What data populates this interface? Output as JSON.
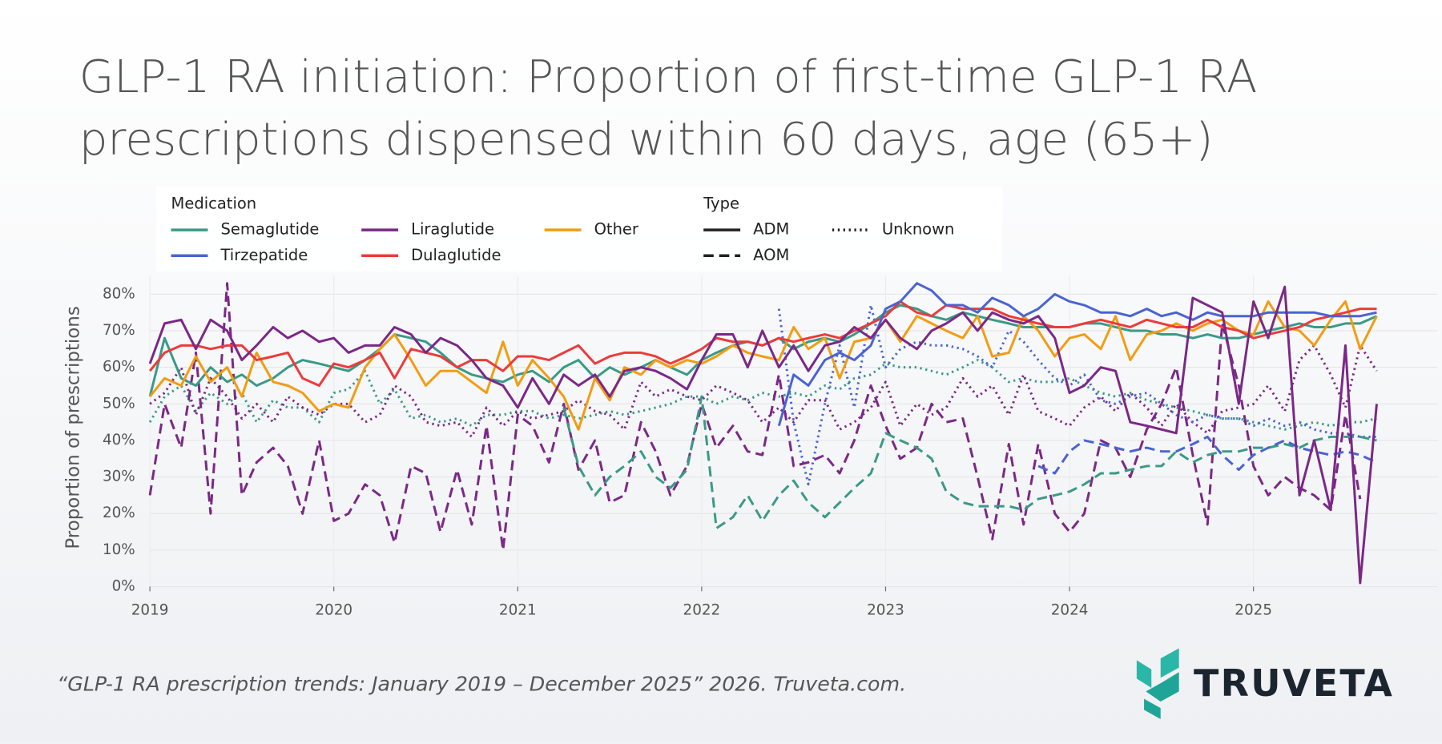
{
  "chart_data": {
    "type": "line",
    "title": [
      "GLP-1 RA initiation: Proportion of first-time GLP-1 RA",
      "prescriptions dispensed within 60 days, age (65+)"
    ],
    "y_label": "Proportion of prescriptions",
    "source": "“GLP-1 RA prescription trends: January 2019 – December 2025” 2026. Truveta.com.",
    "logo": "TRUVETA",
    "legend": {
      "medication_title": "Medication",
      "medications": [
        {
          "name": "Semaglutide",
          "color": "#3a9a86"
        },
        {
          "name": "Tirzepatide",
          "color": "#4a63d3"
        },
        {
          "name": "Liraglutide",
          "color": "#7b2887"
        },
        {
          "name": "Dulaglutide",
          "color": "#ec3b3b"
        },
        {
          "name": "Other",
          "color": "#f39c12"
        }
      ],
      "type_title": "Type",
      "types": [
        {
          "name": "ADM",
          "dash": "none"
        },
        {
          "name": "AOM",
          "dash": "11,6"
        },
        {
          "name": "Unknown",
          "dash": "2,4"
        }
      ]
    },
    "grid": true,
    "xlim": [
      2019,
      2026
    ],
    "xticks": [
      2019,
      2020,
      2021,
      2022,
      2023,
      2024,
      2025
    ],
    "ylim": [
      0,
      85
    ],
    "yticks": [
      {
        "value": 0,
        "label": "0%"
      },
      {
        "value": 10,
        "label": "10%"
      },
      {
        "value": 20,
        "label": "20%"
      },
      {
        "value": 30,
        "label": "30%"
      },
      {
        "value": 40,
        "label": "40%"
      },
      {
        "value": 50,
        "label": "50%"
      },
      {
        "value": 60,
        "label": "60%"
      },
      {
        "value": 70,
        "label": "70%"
      },
      {
        "value": 80,
        "label": "80%"
      }
    ],
    "x": [
      2019,
      2019.08,
      2019.17,
      2019.25,
      2019.33,
      2019.42,
      2019.5,
      2019.58,
      2019.67,
      2019.75,
      2019.83,
      2019.92,
      2020,
      2020.08,
      2020.17,
      2020.25,
      2020.33,
      2020.42,
      2020.5,
      2020.58,
      2020.67,
      2020.75,
      2020.83,
      2020.92,
      2021,
      2021.08,
      2021.17,
      2021.25,
      2021.33,
      2021.42,
      2021.5,
      2021.58,
      2021.67,
      2021.75,
      2021.83,
      2021.92,
      2022,
      2022.08,
      2022.17,
      2022.25,
      2022.33,
      2022.42,
      2022.5,
      2022.58,
      2022.67,
      2022.75,
      2022.83,
      2022.92,
      2023,
      2023.08,
      2023.17,
      2023.25,
      2023.33,
      2023.42,
      2023.5,
      2023.58,
      2023.67,
      2023.75,
      2023.83,
      2023.92,
      2024,
      2024.08,
      2024.17,
      2024.25,
      2024.33,
      2024.42,
      2024.5,
      2024.58,
      2024.67,
      2024.75,
      2024.83,
      2024.92,
      2025,
      2025.08,
      2025.17,
      2025.25,
      2025.33,
      2025.42,
      2025.5,
      2025.58,
      2025.67
    ],
    "series": [
      {
        "medication": "Semaglutide",
        "type": "Unknown",
        "values": [
          45,
          52,
          55,
          48,
          53,
          50,
          53,
          45,
          51,
          49,
          49,
          45,
          53,
          54,
          59,
          50,
          54,
          46,
          47,
          45,
          46,
          44,
          47,
          47,
          48,
          48,
          46,
          47,
          46,
          47,
          48,
          47,
          48,
          49,
          50,
          52,
          52,
          50,
          52,
          51,
          53,
          52,
          53,
          52,
          55,
          54,
          57,
          58,
          61,
          60,
          60,
          59,
          58,
          60,
          62,
          60,
          56,
          57,
          56,
          56,
          57,
          55,
          53,
          52,
          53,
          51,
          50,
          49,
          48,
          47,
          46,
          46,
          45,
          44,
          43,
          44,
          45,
          44,
          45,
          45,
          46
        ]
      },
      {
        "medication": "Liraglutide",
        "type": "Unknown",
        "values": [
          50,
          53,
          60,
          47,
          57,
          52,
          46,
          50,
          45,
          52,
          49,
          47,
          50,
          50,
          45,
          47,
          55,
          52,
          45,
          44,
          45,
          41,
          49,
          44,
          48,
          46,
          47,
          48,
          51,
          48,
          47,
          43,
          56,
          52,
          54,
          52,
          51,
          55,
          53,
          51,
          45,
          49,
          45,
          51,
          51,
          43,
          45,
          49,
          56,
          44,
          50,
          47,
          49,
          57,
          52,
          55,
          47,
          58,
          48,
          46,
          44,
          49,
          52,
          48,
          53,
          49,
          44,
          50,
          45,
          42,
          48,
          49,
          50,
          55,
          48,
          62,
          66,
          58,
          49,
          66,
          59
        ]
      },
      {
        "medication": "Tirzepatide",
        "type": "Unknown",
        "values": [
          null,
          null,
          null,
          null,
          null,
          null,
          null,
          null,
          null,
          null,
          null,
          null,
          null,
          null,
          null,
          null,
          null,
          null,
          null,
          null,
          null,
          null,
          null,
          null,
          null,
          null,
          null,
          null,
          null,
          null,
          null,
          null,
          null,
          null,
          null,
          null,
          null,
          null,
          null,
          null,
          null,
          76,
          45,
          28,
          50,
          66,
          49,
          77,
          60,
          65,
          67,
          66,
          66,
          65,
          63,
          60,
          70,
          67,
          62,
          57,
          55,
          58,
          51,
          50,
          52,
          53,
          50,
          47,
          45,
          47,
          46,
          46,
          44,
          46,
          44,
          45,
          43,
          42,
          42,
          41,
          41
        ]
      },
      {
        "medication": "Liraglutide",
        "type": "AOM",
        "values": [
          25,
          50,
          38,
          64,
          20,
          83,
          25,
          34,
          38,
          33,
          20,
          40,
          18,
          20,
          28,
          25,
          12,
          33,
          31,
          15,
          32,
          17,
          44,
          10,
          47,
          44,
          34,
          50,
          32,
          40,
          23,
          25,
          45,
          37,
          25,
          33,
          50,
          38,
          44,
          37,
          36,
          58,
          33,
          34,
          36,
          31,
          40,
          55,
          44,
          35,
          38,
          50,
          45,
          46,
          30,
          13,
          39,
          17,
          39,
          20,
          15,
          20,
          40,
          38,
          30,
          43,
          50,
          60,
          36,
          17,
          72,
          55,
          33,
          25,
          30,
          27,
          25,
          21,
          47,
          24,
          null
        ]
      },
      {
        "medication": "Semaglutide",
        "type": "AOM",
        "values": [
          null,
          null,
          null,
          null,
          null,
          null,
          null,
          null,
          null,
          null,
          null,
          null,
          null,
          null,
          null,
          null,
          null,
          null,
          null,
          null,
          null,
          null,
          null,
          null,
          null,
          null,
          null,
          49,
          33,
          25,
          30,
          33,
          37,
          30,
          27,
          32,
          52,
          16,
          19,
          25,
          18,
          25,
          29,
          23,
          19,
          23,
          27,
          31,
          42,
          40,
          38,
          35,
          26,
          23,
          22,
          22,
          22,
          21,
          24,
          25,
          26,
          28,
          31,
          31,
          32,
          33,
          33,
          37,
          34,
          36,
          37,
          37,
          38,
          38,
          39,
          38,
          40,
          41,
          41,
          41,
          40
        ]
      },
      {
        "medication": "Tirzepatide",
        "type": "AOM",
        "values": [
          null,
          null,
          null,
          null,
          null,
          null,
          null,
          null,
          null,
          null,
          null,
          null,
          null,
          null,
          null,
          null,
          null,
          null,
          null,
          null,
          null,
          null,
          null,
          null,
          null,
          null,
          null,
          null,
          null,
          null,
          null,
          null,
          null,
          null,
          null,
          null,
          null,
          null,
          null,
          null,
          null,
          null,
          null,
          null,
          null,
          null,
          null,
          null,
          null,
          null,
          null,
          null,
          null,
          null,
          null,
          null,
          null,
          null,
          33,
          31,
          37,
          40,
          39,
          38,
          37,
          38,
          37,
          37,
          39,
          41,
          36,
          32,
          36,
          38,
          40,
          38,
          37,
          36,
          37,
          36,
          34
        ]
      },
      {
        "medication": "Semaglutide",
        "type": "ADM",
        "values": [
          52,
          68,
          57,
          55,
          60,
          56,
          58,
          55,
          57,
          60,
          62,
          61,
          60,
          59,
          62,
          65,
          69,
          68,
          67,
          64,
          60,
          58,
          57,
          56,
          58,
          59,
          56,
          60,
          62,
          57,
          60,
          58,
          60,
          62,
          60,
          58,
          62,
          64,
          66,
          67,
          66,
          68,
          65,
          67,
          68,
          67,
          69,
          72,
          75,
          77,
          76,
          74,
          73,
          75,
          74,
          73,
          72,
          71,
          71,
          71,
          71,
          72,
          72,
          71,
          70,
          70,
          69,
          69,
          68,
          69,
          68,
          68,
          69,
          70,
          71,
          72,
          71,
          71,
          72,
          72,
          74
        ]
      },
      {
        "medication": "Other",
        "type": "ADM",
        "values": [
          52,
          57,
          55,
          63,
          56,
          60,
          52,
          64,
          56,
          55,
          53,
          48,
          50,
          49,
          60,
          65,
          69,
          62,
          55,
          59,
          59,
          56,
          53,
          67,
          55,
          62,
          57,
          52,
          43,
          57,
          51,
          60,
          58,
          62,
          60,
          62,
          61,
          63,
          66,
          64,
          63,
          62,
          71,
          65,
          68,
          57,
          67,
          68,
          73,
          67,
          74,
          72,
          70,
          68,
          74,
          63,
          64,
          74,
          70,
          63,
          68,
          69,
          65,
          74,
          62,
          69,
          70,
          72,
          70,
          72,
          73,
          70,
          69,
          78,
          71,
          70,
          66,
          73,
          78,
          65,
          74
        ]
      },
      {
        "medication": "Dulaglutide",
        "type": "ADM",
        "values": [
          59,
          64,
          66,
          66,
          65,
          66,
          66,
          62,
          63,
          64,
          57,
          55,
          61,
          60,
          62,
          64,
          57,
          65,
          64,
          63,
          60,
          62,
          62,
          59,
          63,
          63,
          62,
          64,
          66,
          61,
          63,
          64,
          64,
          63,
          61,
          63,
          65,
          68,
          67,
          67,
          66,
          68,
          67,
          68,
          69,
          68,
          70,
          72,
          74,
          78,
          75,
          74,
          77,
          76,
          76,
          76,
          74,
          73,
          72,
          71,
          71,
          72,
          73,
          72,
          71,
          73,
          72,
          71,
          71,
          73,
          71,
          70,
          68,
          69,
          70,
          71,
          73,
          74,
          75,
          76,
          76
        ]
      },
      {
        "medication": "Tirzepatide",
        "type": "ADM",
        "values": [
          null,
          null,
          null,
          null,
          null,
          null,
          null,
          null,
          null,
          null,
          null,
          null,
          null,
          null,
          null,
          null,
          null,
          null,
          null,
          null,
          null,
          null,
          null,
          null,
          null,
          null,
          null,
          null,
          null,
          null,
          null,
          null,
          null,
          null,
          null,
          null,
          null,
          null,
          null,
          null,
          null,
          44,
          58,
          55,
          62,
          64,
          62,
          66,
          76,
          78,
          83,
          81,
          77,
          77,
          75,
          79,
          77,
          74,
          76,
          80,
          78,
          77,
          75,
          75,
          74,
          76,
          74,
          75,
          73,
          75,
          74,
          74,
          74,
          75,
          75,
          75,
          75,
          74,
          74,
          74,
          75
        ]
      },
      {
        "medication": "Liraglutide",
        "type": "ADM",
        "values": [
          61,
          72,
          73,
          65,
          73,
          70,
          62,
          66,
          71,
          68,
          70,
          67,
          68,
          64,
          66,
          66,
          71,
          69,
          64,
          68,
          66,
          62,
          57,
          55,
          49,
          57,
          50,
          58,
          55,
          58,
          52,
          59,
          60,
          59,
          57,
          54,
          62,
          69,
          69,
          60,
          70,
          60,
          66,
          59,
          66,
          67,
          71,
          68,
          73,
          68,
          65,
          70,
          72,
          75,
          70,
          75,
          73,
          72,
          74,
          68,
          53,
          55,
          60,
          59,
          45,
          44,
          43,
          42,
          79,
          77,
          75,
          50,
          78,
          68,
          82,
          25,
          40,
          21,
          66,
          1,
          50
        ]
      }
    ]
  }
}
